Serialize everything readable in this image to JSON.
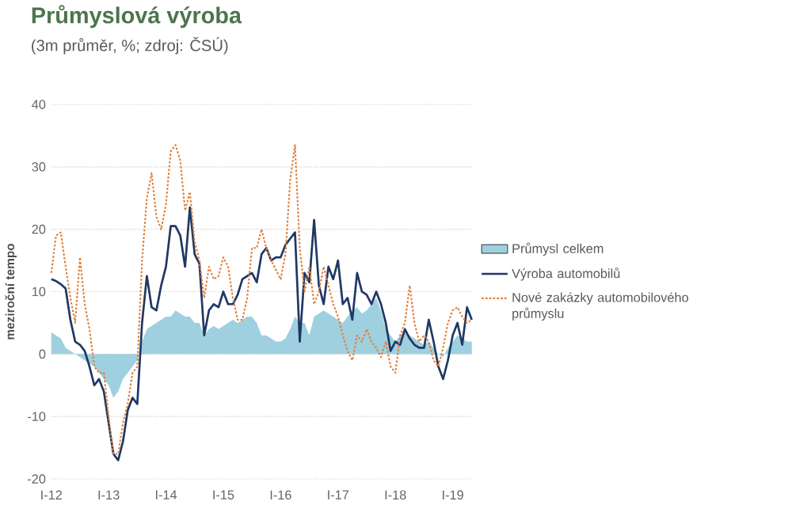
{
  "chart_data": {
    "type": "line",
    "title": "Průmyslová výroba",
    "subtitle": "(3m průměr, %; zdroj: ČSÚ)",
    "ylabel": "meziroční tempo",
    "x": [
      "2012-01",
      "2012-02",
      "2012-03",
      "2012-04",
      "2012-05",
      "2012-06",
      "2012-07",
      "2012-08",
      "2012-09",
      "2012-10",
      "2012-11",
      "2012-12",
      "2013-01",
      "2013-02",
      "2013-03",
      "2013-04",
      "2013-05",
      "2013-06",
      "2013-07",
      "2013-08",
      "2013-09",
      "2013-10",
      "2013-11",
      "2013-12",
      "2014-01",
      "2014-02",
      "2014-03",
      "2014-04",
      "2014-05",
      "2014-06",
      "2014-07",
      "2014-08",
      "2014-09",
      "2014-10",
      "2014-11",
      "2014-12",
      "2015-01",
      "2015-02",
      "2015-03",
      "2015-04",
      "2015-05",
      "2015-06",
      "2015-07",
      "2015-08",
      "2015-09",
      "2015-10",
      "2015-11",
      "2015-12",
      "2016-01",
      "2016-02",
      "2016-03",
      "2016-04",
      "2016-05",
      "2016-06",
      "2016-07",
      "2016-08",
      "2016-09",
      "2016-10",
      "2016-11",
      "2016-12",
      "2017-01",
      "2017-02",
      "2017-03",
      "2017-04",
      "2017-05",
      "2017-06",
      "2017-07",
      "2017-08",
      "2017-09",
      "2017-10",
      "2017-11",
      "2017-12",
      "2018-01",
      "2018-02",
      "2018-03",
      "2018-04",
      "2018-05",
      "2018-06",
      "2018-07",
      "2018-08",
      "2018-09",
      "2018-10",
      "2018-11",
      "2018-12",
      "2019-01",
      "2019-02",
      "2019-03",
      "2019-04",
      "2019-05"
    ],
    "series": [
      {
        "name": "Průmysl celkem",
        "type": "area",
        "color": "#9fd0e0",
        "values": [
          3.5,
          3,
          2.5,
          1,
          0.5,
          0,
          -0.5,
          -1,
          -1.5,
          -2,
          -3,
          -4,
          -5,
          -7,
          -6,
          -4,
          -3,
          -2,
          -1,
          2,
          4,
          4.5,
          5,
          5.5,
          6,
          6,
          7,
          6.5,
          6,
          6,
          5,
          5,
          3,
          4,
          4.5,
          4,
          4.5,
          5,
          5.5,
          5,
          5.5,
          6,
          6,
          5,
          3,
          3,
          2.5,
          2,
          2,
          2.5,
          4,
          6,
          5,
          5,
          3,
          6,
          6.5,
          7,
          6.5,
          6,
          5.5,
          5,
          6,
          7,
          7.5,
          6.5,
          7,
          8,
          9,
          7,
          4,
          3,
          2,
          3,
          3.5,
          3,
          2.5,
          2,
          1.5,
          2,
          1,
          0,
          -0.5,
          1,
          2,
          3,
          2.5,
          2,
          2
        ]
      },
      {
        "name": "Výroba automobilů",
        "type": "line",
        "color": "#1f3864",
        "line_style": "solid",
        "values": [
          12,
          11.7,
          11.2,
          10.5,
          5.5,
          2,
          1.5,
          0.5,
          -2,
          -5,
          -4,
          -6,
          -11,
          -16,
          -17,
          -14,
          -9,
          -7,
          -8,
          5,
          12.5,
          7.5,
          7,
          11,
          14,
          20.5,
          20.5,
          19,
          14,
          23.5,
          16,
          14.5,
          3,
          7,
          8,
          7.5,
          10,
          8,
          8,
          9.5,
          12,
          12.5,
          13,
          11.5,
          16,
          17,
          15,
          15.5,
          15.5,
          17.5,
          18.5,
          19.5,
          2,
          13,
          11.5,
          21.5,
          11,
          8,
          14,
          12,
          15,
          8,
          9,
          5.5,
          13,
          10,
          9.5,
          8,
          10,
          8,
          5,
          0.5,
          2,
          1.5,
          4,
          2.5,
          1.5,
          1,
          1,
          5.5,
          2,
          -2,
          -4,
          -1,
          3,
          5,
          1.5,
          7.5,
          5.5
        ]
      },
      {
        "name": "Nové zakázky automobilového průmyslu",
        "type": "line",
        "color": "#e0803c",
        "line_style": "dotted",
        "values": [
          13,
          19,
          19.5,
          14,
          9,
          5,
          15.5,
          8,
          4,
          -2,
          -3,
          -3,
          -10,
          -16,
          -16,
          -11,
          -8,
          -3,
          -2,
          15,
          25,
          29,
          22,
          20,
          24,
          32.5,
          33.5,
          31,
          23,
          26,
          18,
          15,
          9,
          14,
          12,
          12.5,
          15.5,
          14,
          9,
          5.5,
          5.5,
          9,
          17,
          17,
          20,
          17,
          15,
          13.5,
          12,
          16,
          28,
          33.5,
          17,
          10,
          14,
          8,
          10,
          14,
          11,
          8,
          6,
          3,
          0.5,
          -1,
          3,
          2,
          4,
          2,
          1,
          -0.5,
          2,
          -2,
          -3,
          3,
          5,
          11,
          5,
          2,
          3,
          2,
          -1,
          -2,
          1,
          5,
          7,
          7.5,
          6,
          5,
          5.5
        ]
      }
    ],
    "xlim": [
      "2012-01",
      "2019-05"
    ],
    "xticks": [
      {
        "value": "2012-01",
        "label": "I-12"
      },
      {
        "value": "2013-01",
        "label": "I-13"
      },
      {
        "value": "2014-01",
        "label": "I-14"
      },
      {
        "value": "2015-01",
        "label": "I-15"
      },
      {
        "value": "2016-01",
        "label": "I-16"
      },
      {
        "value": "2017-01",
        "label": "I-17"
      },
      {
        "value": "2018-01",
        "label": "I-18"
      },
      {
        "value": "2019-01",
        "label": "I-19"
      }
    ],
    "ylim": [
      -20,
      40
    ],
    "yticks": [
      -20,
      -10,
      0,
      10,
      20,
      30,
      40
    ],
    "grid": "y",
    "legend": "right",
    "marker": "none"
  }
}
